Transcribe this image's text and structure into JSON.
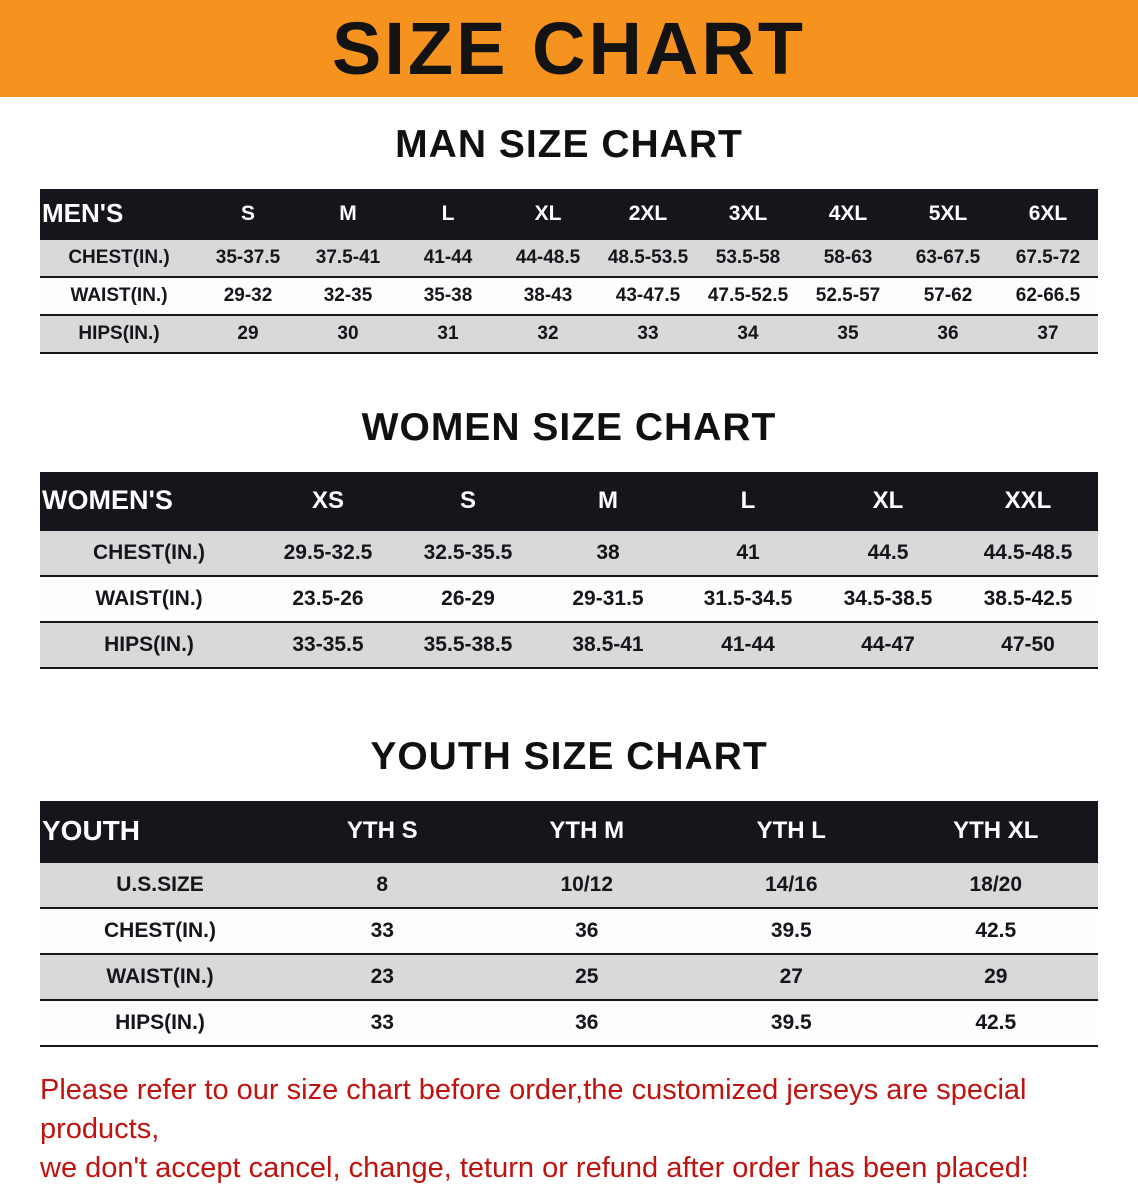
{
  "banner": {
    "title": "SIZE CHART",
    "bg_color": "#f6921e",
    "text_color": "#131313"
  },
  "tables": [
    {
      "id": "men",
      "heading": "MAN SIZE CHART",
      "header": {
        "label": "MEN'S",
        "columns": [
          "S",
          "M",
          "L",
          "XL",
          "2XL",
          "3XL",
          "4XL",
          "5XL",
          "6XL"
        ]
      },
      "rows": [
        {
          "label": "CHEST(IN.)",
          "values": [
            "35-37.5",
            "37.5-41",
            "41-44",
            "44-48.5",
            "48.5-53.5",
            "53.5-58",
            "58-63",
            "63-67.5",
            "67.5-72"
          ]
        },
        {
          "label": "WAIST(IN.)",
          "values": [
            "29-32",
            "32-35",
            "35-38",
            "38-43",
            "43-47.5",
            "47.5-52.5",
            "52.5-57",
            "57-62",
            "62-66.5"
          ]
        },
        {
          "label": "HIPS(IN.)",
          "values": [
            "29",
            "30",
            "31",
            "32",
            "33",
            "34",
            "35",
            "36",
            "37"
          ]
        }
      ]
    },
    {
      "id": "women",
      "heading": "WOMEN SIZE CHART",
      "header": {
        "label": "WOMEN'S",
        "columns": [
          "XS",
          "S",
          "M",
          "L",
          "XL",
          "XXL"
        ]
      },
      "rows": [
        {
          "label": "CHEST(IN.)",
          "values": [
            "29.5-32.5",
            "32.5-35.5",
            "38",
            "41",
            "44.5",
            "44.5-48.5"
          ]
        },
        {
          "label": "WAIST(IN.)",
          "values": [
            "23.5-26",
            "26-29",
            "29-31.5",
            "31.5-34.5",
            "34.5-38.5",
            "38.5-42.5"
          ]
        },
        {
          "label": "HIPS(IN.)",
          "values": [
            "33-35.5",
            "35.5-38.5",
            "38.5-41",
            "41-44",
            "44-47",
            "47-50"
          ]
        }
      ]
    },
    {
      "id": "youth",
      "heading": "YOUTH SIZE CHART",
      "header": {
        "label": "YOUTH",
        "columns": [
          "YTH S",
          "YTH M",
          "YTH L",
          "YTH XL"
        ]
      },
      "rows": [
        {
          "label": "U.S.SIZE",
          "values": [
            "8",
            "10/12",
            "14/16",
            "18/20"
          ]
        },
        {
          "label": "CHEST(IN.)",
          "values": [
            "33",
            "36",
            "39.5",
            "42.5"
          ]
        },
        {
          "label": "WAIST(IN.)",
          "values": [
            "23",
            "25",
            "27",
            "29"
          ]
        },
        {
          "label": "HIPS(IN.)",
          "values": [
            "33",
            "36",
            "39.5",
            "42.5"
          ]
        }
      ]
    }
  ],
  "footer": {
    "line1": "Please refer to our size chart before order,the customized jerseys are special products,",
    "line2": "we don't accept cancel, change, teturn or refund after order has been placed!",
    "text_color": "#c01310"
  }
}
